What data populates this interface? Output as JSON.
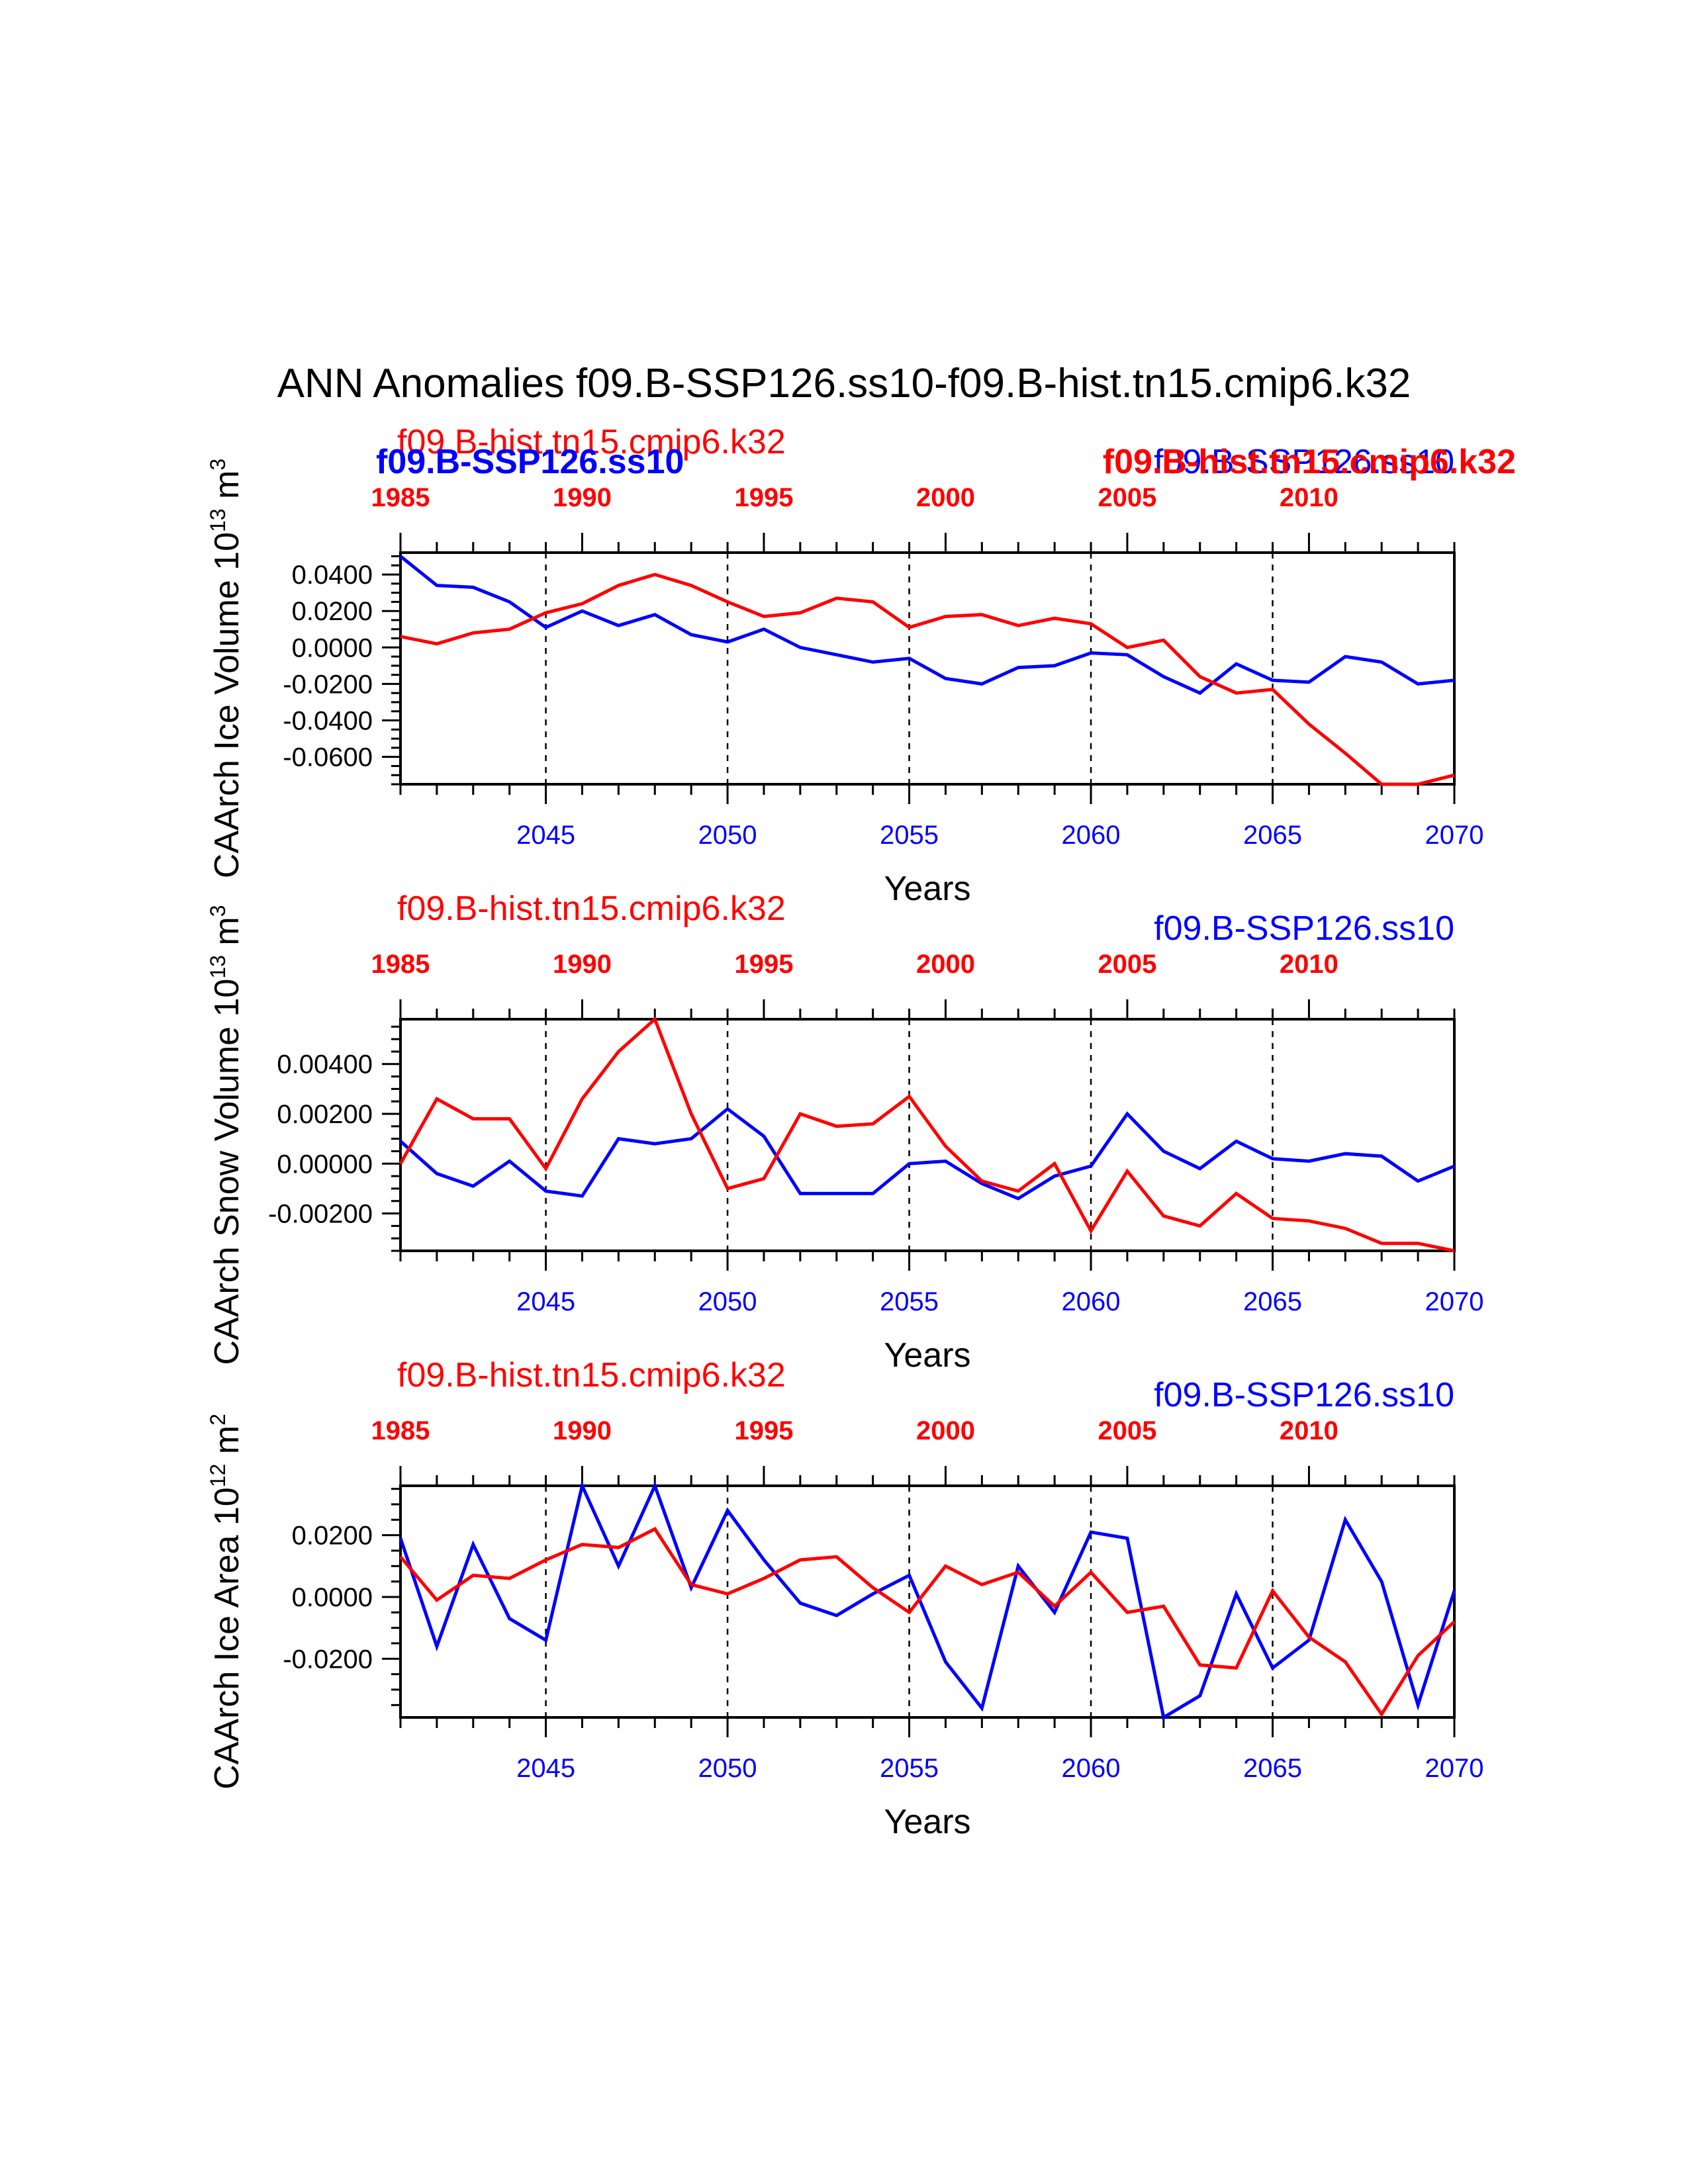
{
  "title": "ANN Anomalies f09.B-SSP126.ss10-f09.B-hist.tn15.cmip6.k32",
  "colors": {
    "case": "#0000ff",
    "control": "#ff0000",
    "axis": "#000000"
  },
  "chart_data": [
    {
      "type": "line",
      "ylabel": "CAArch Ice Volume 10^13 m^3",
      "ylabel_main": "CAArch Ice Volume 10",
      "ylabel_exp1": "13",
      "ylabel_mid": " m",
      "ylabel_exp2": "3",
      "xlabel": "Years",
      "xlim": [
        2041,
        2070
      ],
      "top_xlim": [
        1985,
        2014
      ],
      "ylim": [
        -0.075,
        0.052
      ],
      "yticks": [
        0.04,
        0.02,
        0.0,
        -0.02,
        -0.04,
        -0.06
      ],
      "ytick_labels": [
        "0.0400",
        "0.0200",
        "0.0000",
        "-0.0200",
        "-0.0400",
        "-0.0600"
      ],
      "xticks": [
        2045,
        2050,
        2055,
        2060,
        2065,
        2070
      ],
      "xtick_labels": [
        "2045",
        "2050",
        "2055",
        "2060",
        "2065",
        "2070"
      ],
      "top_xticks": [
        1985,
        1990,
        1995,
        2000,
        2005,
        2010
      ],
      "top_xtick_labels": [
        "1985",
        "1990",
        "1995",
        "2000",
        "2005",
        "2010"
      ],
      "labels": {
        "control_left": "f09.B-hist.tn15.cmip6.k32",
        "case_left_bold": "f09.B-SSP126.ss10",
        "case_right": "f09.B-SSP126.ss10",
        "control_right_bold": "f09.B-hist.tn15.cmip6.k32"
      },
      "series": [
        {
          "name": "f09.B-SSP126.ss10",
          "color": "#0000ff",
          "x": [
            2041,
            2042,
            2043,
            2044,
            2045,
            2046,
            2047,
            2048,
            2049,
            2050,
            2051,
            2052,
            2053,
            2054,
            2055,
            2056,
            2057,
            2058,
            2059,
            2060,
            2061,
            2062,
            2063,
            2064,
            2065,
            2066,
            2067,
            2068,
            2069,
            2070
          ],
          "values": [
            0.05,
            0.034,
            0.033,
            0.025,
            0.011,
            0.02,
            0.012,
            0.018,
            0.007,
            0.003,
            0.01,
            0.0,
            -0.004,
            -0.008,
            -0.006,
            -0.017,
            -0.02,
            -0.011,
            -0.01,
            -0.003,
            -0.004,
            -0.016,
            -0.025,
            -0.009,
            -0.018,
            -0.019,
            -0.005,
            -0.008,
            -0.02,
            -0.018
          ]
        },
        {
          "name": "f09.B-hist.tn15.cmip6.k32",
          "color": "#ff0000",
          "x": [
            2041,
            2042,
            2043,
            2044,
            2045,
            2046,
            2047,
            2048,
            2049,
            2050,
            2051,
            2052,
            2053,
            2054,
            2055,
            2056,
            2057,
            2058,
            2059,
            2060,
            2061,
            2062,
            2063,
            2064,
            2065,
            2066,
            2067,
            2068,
            2069,
            2070
          ],
          "values": [
            0.006,
            0.002,
            0.008,
            0.01,
            0.019,
            0.024,
            0.034,
            0.04,
            0.034,
            0.025,
            0.017,
            0.019,
            0.027,
            0.025,
            0.011,
            0.017,
            0.018,
            0.012,
            0.016,
            0.013,
            0.0,
            0.004,
            -0.016,
            -0.025,
            -0.023,
            -0.042,
            -0.058,
            -0.075,
            -0.076,
            -0.07
          ]
        }
      ]
    },
    {
      "type": "line",
      "ylabel": "CAArch Snow Volume 10^13 m^3",
      "ylabel_main": "CAArch Snow Volume 10",
      "ylabel_exp1": "13",
      "ylabel_mid": " m",
      "ylabel_exp2": "3",
      "xlabel": "Years",
      "xlim": [
        2041,
        2070
      ],
      "top_xlim": [
        1985,
        2014
      ],
      "ylim": [
        -0.0035,
        0.0058
      ],
      "yticks": [
        0.004,
        0.002,
        0.0,
        -0.002
      ],
      "ytick_labels": [
        "0.00400",
        "0.00200",
        "0.00000",
        "-0.00200"
      ],
      "xticks": [
        2045,
        2050,
        2055,
        2060,
        2065,
        2070
      ],
      "xtick_labels": [
        "2045",
        "2050",
        "2055",
        "2060",
        "2065",
        "2070"
      ],
      "top_xticks": [
        1985,
        1990,
        1995,
        2000,
        2005,
        2010
      ],
      "top_xtick_labels": [
        "1985",
        "1990",
        "1995",
        "2000",
        "2005",
        "2010"
      ],
      "labels": {
        "control_left": "f09.B-hist.tn15.cmip6.k32",
        "case_right": "f09.B-SSP126.ss10"
      },
      "series": [
        {
          "name": "f09.B-SSP126.ss10",
          "color": "#0000ff",
          "x": [
            2041,
            2042,
            2043,
            2044,
            2045,
            2046,
            2047,
            2048,
            2049,
            2050,
            2051,
            2052,
            2053,
            2054,
            2055,
            2056,
            2057,
            2058,
            2059,
            2060,
            2061,
            2062,
            2063,
            2064,
            2065,
            2066,
            2067,
            2068,
            2069,
            2070
          ],
          "values": [
            0.0009,
            -0.0004,
            -0.0009,
            0.0001,
            -0.0011,
            -0.0013,
            0.001,
            0.0008,
            0.001,
            0.0022,
            0.0011,
            -0.0012,
            -0.0012,
            -0.0012,
            0.0,
            0.0001,
            -0.0008,
            -0.0014,
            -0.0005,
            -0.0001,
            0.002,
            0.0005,
            -0.0002,
            0.0009,
            0.0002,
            0.0001,
            0.0004,
            0.0003,
            -0.0007,
            -0.0001
          ]
        },
        {
          "name": "f09.B-hist.tn15.cmip6.k32",
          "color": "#ff0000",
          "x": [
            2041,
            2042,
            2043,
            2044,
            2045,
            2046,
            2047,
            2048,
            2049,
            2050,
            2051,
            2052,
            2053,
            2054,
            2055,
            2056,
            2057,
            2058,
            2059,
            2060,
            2061,
            2062,
            2063,
            2064,
            2065,
            2066,
            2067,
            2068,
            2069,
            2070
          ],
          "values": [
            0.0,
            0.0026,
            0.0018,
            0.0018,
            -0.0002,
            0.0026,
            0.0045,
            0.0058,
            0.002,
            -0.001,
            -0.0006,
            0.002,
            0.0015,
            0.0016,
            0.0027,
            0.0007,
            -0.0007,
            -0.0011,
            0.0,
            -0.0027,
            -0.0003,
            -0.0021,
            -0.0025,
            -0.0012,
            -0.0022,
            -0.0023,
            -0.0026,
            -0.0032,
            -0.0032,
            -0.0035
          ]
        }
      ]
    },
    {
      "type": "line",
      "ylabel": "CAArch Ice Area 10^12 m^2",
      "ylabel_main": "CAArch Ice Area 10",
      "ylabel_exp1": "12",
      "ylabel_mid": " m",
      "ylabel_exp2": "2",
      "xlabel": "Years",
      "xlim": [
        2041,
        2070
      ],
      "top_xlim": [
        1985,
        2014
      ],
      "ylim": [
        -0.039,
        0.036
      ],
      "yticks": [
        0.02,
        0.0,
        -0.02
      ],
      "ytick_labels": [
        "0.0200",
        "0.0000",
        "-0.0200"
      ],
      "xticks": [
        2045,
        2050,
        2055,
        2060,
        2065,
        2070
      ],
      "xtick_labels": [
        "2045",
        "2050",
        "2055",
        "2060",
        "2065",
        "2070"
      ],
      "top_xticks": [
        1985,
        1990,
        1995,
        2000,
        2005,
        2010
      ],
      "top_xtick_labels": [
        "1985",
        "1990",
        "1995",
        "2000",
        "2005",
        "2010"
      ],
      "labels": {
        "control_left": "f09.B-hist.tn15.cmip6.k32",
        "case_right": "f09.B-SSP126.ss10"
      },
      "series": [
        {
          "name": "f09.B-SSP126.ss10",
          "color": "#0000ff",
          "x": [
            2041,
            2042,
            2043,
            2044,
            2045,
            2046,
            2047,
            2048,
            2049,
            2050,
            2051,
            2052,
            2053,
            2054,
            2055,
            2056,
            2057,
            2058,
            2059,
            2060,
            2061,
            2062,
            2063,
            2064,
            2065,
            2066,
            2067,
            2068,
            2069,
            2070
          ],
          "values": [
            0.019,
            -0.016,
            0.017,
            -0.007,
            -0.014,
            0.036,
            0.01,
            0.036,
            0.003,
            0.028,
            0.012,
            -0.002,
            -0.006,
            0.001,
            0.007,
            -0.021,
            -0.036,
            0.01,
            -0.005,
            0.021,
            0.019,
            -0.039,
            -0.032,
            0.001,
            -0.023,
            -0.014,
            0.025,
            0.005,
            -0.035,
            0.002
          ]
        },
        {
          "name": "f09.B-hist.tn15.cmip6.k32",
          "color": "#ff0000",
          "x": [
            2041,
            2042,
            2043,
            2044,
            2045,
            2046,
            2047,
            2048,
            2049,
            2050,
            2051,
            2052,
            2053,
            2054,
            2055,
            2056,
            2057,
            2058,
            2059,
            2060,
            2061,
            2062,
            2063,
            2064,
            2065,
            2066,
            2067,
            2068,
            2069,
            2070
          ],
          "values": [
            0.013,
            -0.001,
            0.007,
            0.006,
            0.012,
            0.017,
            0.016,
            0.022,
            0.004,
            0.001,
            0.006,
            0.012,
            0.013,
            0.003,
            -0.005,
            0.01,
            0.004,
            0.008,
            -0.003,
            0.008,
            -0.005,
            -0.003,
            -0.022,
            -0.023,
            0.002,
            -0.013,
            -0.021,
            -0.038,
            -0.019,
            -0.008
          ]
        }
      ]
    }
  ]
}
